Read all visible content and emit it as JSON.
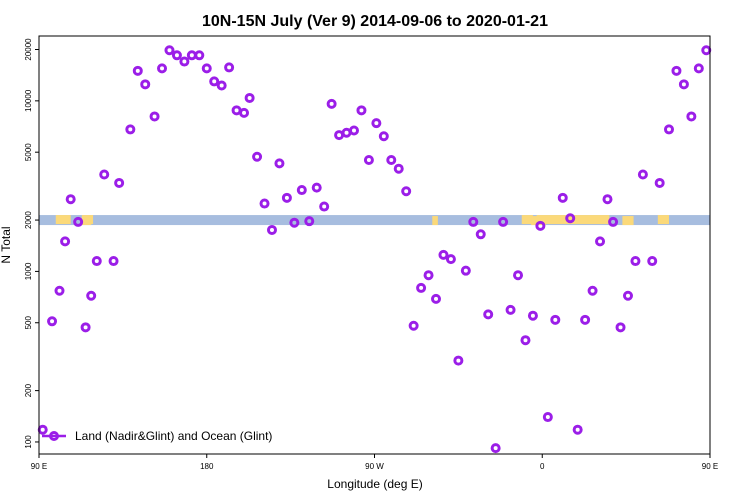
{
  "chart_data": {
    "type": "scatter",
    "title": "10N-15N July (Ver 9)   2014-09-06 to 2020-01-21",
    "xlabel": "Longitude (deg E)",
    "ylabel": "N Total",
    "y_scale": "log",
    "xlim": [
      90,
      450
    ],
    "ylim": [
      85,
      24000
    ],
    "x_ticks": [
      {
        "value": 90,
        "label": "90 E"
      },
      {
        "value": 180,
        "label": "180"
      },
      {
        "value": 270,
        "label": "90 W"
      },
      {
        "value": 360,
        "label": "0"
      },
      {
        "value": 450,
        "label": "90 E"
      }
    ],
    "y_ticks": [
      {
        "value": 100,
        "label": "100"
      },
      {
        "value": 200,
        "label": "200"
      },
      {
        "value": 500,
        "label": "500"
      },
      {
        "value": 1000,
        "label": "1000"
      },
      {
        "value": 2000,
        "label": "2000"
      },
      {
        "value": 5000,
        "label": "5000"
      },
      {
        "value": 10000,
        "label": "10000"
      },
      {
        "value": 20000,
        "label": "20000"
      }
    ],
    "map_strip": {
      "y_center": 2000,
      "ocean_color": "#a7bddf",
      "land_color": "#fbd97a",
      "land_ranges": [
        [
          99,
          107
        ],
        [
          113,
          118
        ],
        [
          113,
          119
        ],
        [
          301,
          304
        ],
        [
          357,
          396
        ],
        [
          403,
          409
        ],
        [
          422,
          428
        ],
        [
          354,
          362
        ],
        [
          349,
          355
        ]
      ]
    },
    "series": [
      {
        "name": "Land (Nadir&Glint) and Ocean (Glint)",
        "color": "#9b1ee8",
        "points": [
          [
            92,
            118
          ],
          [
            97,
            510
          ],
          [
            101,
            770
          ],
          [
            104,
            1500
          ],
          [
            107,
            2650
          ],
          [
            111,
            1950
          ],
          [
            115,
            470
          ],
          [
            118,
            720
          ],
          [
            121,
            1150
          ],
          [
            125,
            3700
          ],
          [
            130,
            1150
          ],
          [
            133,
            3300
          ],
          [
            139,
            6800
          ],
          [
            143,
            15000
          ],
          [
            147,
            12500
          ],
          [
            152,
            8100
          ],
          [
            156,
            15500
          ],
          [
            160,
            19800
          ],
          [
            164,
            18500
          ],
          [
            168,
            17000
          ],
          [
            172,
            18500
          ],
          [
            176,
            18500
          ],
          [
            180,
            15500
          ],
          [
            184,
            13000
          ],
          [
            188,
            12300
          ],
          [
            192,
            15700
          ],
          [
            196,
            8800
          ],
          [
            200,
            8500
          ],
          [
            203,
            10400
          ],
          [
            207,
            4700
          ],
          [
            211,
            2500
          ],
          [
            215,
            1750
          ],
          [
            219,
            4300
          ],
          [
            223,
            2700
          ],
          [
            227,
            1930
          ],
          [
            231,
            3000
          ],
          [
            235,
            1970
          ],
          [
            239,
            3100
          ],
          [
            243,
            2400
          ],
          [
            247,
            9600
          ],
          [
            251,
            6300
          ],
          [
            255,
            6500
          ],
          [
            259,
            6700
          ],
          [
            263,
            8800
          ],
          [
            267,
            4500
          ],
          [
            271,
            7400
          ],
          [
            275,
            6200
          ],
          [
            279,
            4500
          ],
          [
            283,
            4000
          ],
          [
            287,
            2950
          ],
          [
            291,
            480
          ],
          [
            295,
            800
          ],
          [
            299,
            950
          ],
          [
            303,
            690
          ],
          [
            307,
            1250
          ],
          [
            311,
            1180
          ],
          [
            315,
            300
          ],
          [
            319,
            1010
          ],
          [
            323,
            1950
          ],
          [
            327,
            1650
          ],
          [
            331,
            560
          ],
          [
            335,
            92
          ],
          [
            339,
            1950
          ],
          [
            343,
            595
          ],
          [
            347,
            950
          ],
          [
            351,
            395
          ],
          [
            355,
            550
          ],
          [
            359,
            1850
          ],
          [
            363,
            140
          ],
          [
            367,
            520
          ],
          [
            371,
            2700
          ],
          [
            375,
            2050
          ],
          [
            379,
            118
          ],
          [
            383,
            520
          ],
          [
            387,
            770
          ],
          [
            391,
            1500
          ],
          [
            395,
            2650
          ],
          [
            398,
            1950
          ],
          [
            402,
            470
          ],
          [
            406,
            720
          ],
          [
            410,
            1150
          ],
          [
            414,
            3700
          ],
          [
            419,
            1150
          ],
          [
            423,
            3300
          ],
          [
            428,
            6800
          ],
          [
            432,
            15000
          ],
          [
            436,
            12500
          ],
          [
            440,
            8100
          ],
          [
            444,
            15500
          ],
          [
            448,
            19800
          ]
        ]
      }
    ],
    "legend": {
      "position": "bottom-left",
      "label": "Land (Nadir&Glint) and Ocean (Glint)"
    }
  }
}
